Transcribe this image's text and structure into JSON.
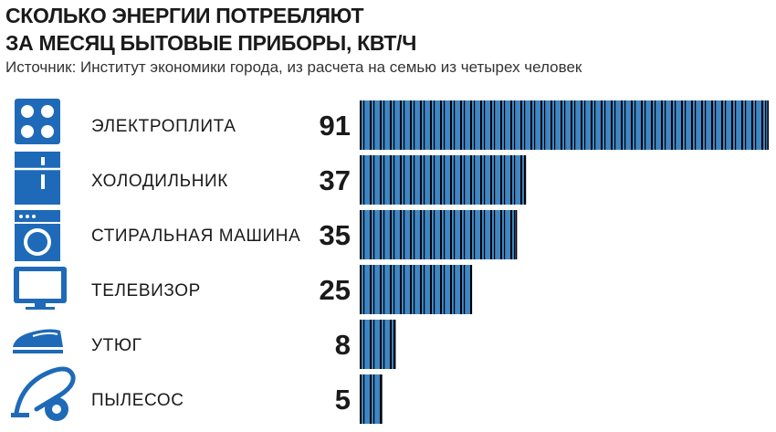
{
  "title_lines": [
    "СКОЛЬКО ЭНЕРГИИ ПОТРЕБЛЯЮТ",
    "ЗА МЕСЯЦ БЫТОВЫЕ ПРИБОРЫ, КВТ/Ч"
  ],
  "source": "Источник: Институт экономики города, из расчета на семью из четырех человек",
  "colors": {
    "bar": "#3f86c4",
    "icon": "#1e6ab8",
    "stripe": "#000000"
  },
  "chart_data": {
    "type": "bar",
    "orientation": "horizontal",
    "title": "СКОЛЬКО ЭНЕРГИИ ПОТРЕБЛЯЮТ ЗА МЕСЯЦ БЫТОВЫЕ ПРИБОРЫ, КВТ/Ч",
    "categories": [
      "ЭЛЕКТРОПЛИТА",
      "ХОЛОДИЛЬНИК",
      "СТИРАЛЬНАЯ МАШИНА",
      "ТЕЛЕВИЗОР",
      "УТЮГ",
      "ПЫЛЕСОС"
    ],
    "values": [
      91,
      37,
      35,
      25,
      8,
      5
    ],
    "icons": [
      "stove-icon",
      "fridge-icon",
      "washing-machine-icon",
      "tv-icon",
      "iron-icon",
      "vacuum-cleaner-icon"
    ],
    "xlim": [
      0,
      91
    ],
    "grid": false,
    "legend": "none"
  }
}
